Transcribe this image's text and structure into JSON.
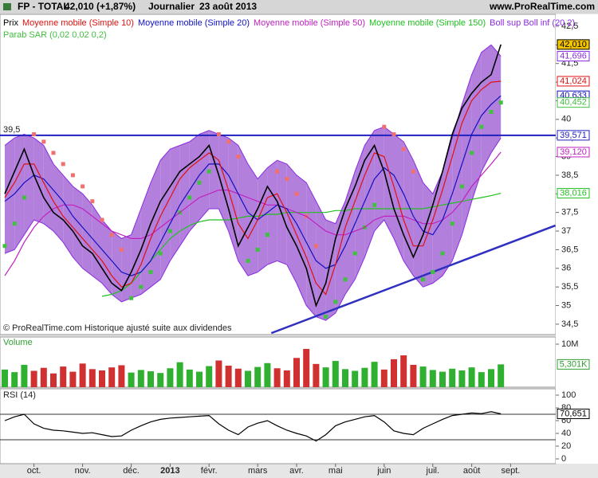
{
  "header": {
    "title": "FP - TOTAL",
    "quote": "42,010 (+1,87%)",
    "period": "Journalier",
    "date": "23 août 2013",
    "site": "www.ProRealTime.com"
  },
  "footnote": "© ProRealTime.com Historique ajusté suite aux dividendes",
  "chart_data": [
    {
      "type": "line",
      "categories": [
        null,
        null,
        null,
        "oct.",
        null,
        null,
        null,
        null,
        "nov.",
        null,
        null,
        null,
        null,
        "déc.",
        null,
        null,
        null,
        "2013",
        null,
        null,
        null,
        "févr.",
        null,
        null,
        null,
        null,
        "mars",
        null,
        null,
        null,
        "avr.",
        null,
        null,
        null,
        "mai",
        null,
        null,
        null,
        null,
        "juin",
        null,
        null,
        null,
        null,
        "juil.",
        null,
        null,
        null,
        "août",
        null,
        null,
        null,
        "sept."
      ],
      "ylim": [
        34.22,
        42.82
      ],
      "yticks": [
        {
          "value": 34.5,
          "label": "34,5"
        },
        35,
        {
          "value": 35.5,
          "label": "35,5"
        },
        36,
        {
          "value": 36.5,
          "label": "36,5"
        },
        37,
        {
          "value": 37.5,
          "label": "37,5"
        },
        38,
        {
          "value": 38.5,
          "label": "38,5"
        },
        39,
        {
          "value": 39.5,
          "label": "39,5"
        },
        40,
        {
          "value": 40.5,
          "label": "40,5"
        },
        41,
        {
          "value": 41.5,
          "label": "41,5"
        },
        42,
        {
          "value": 42.5,
          "label": "42,5"
        }
      ],
      "bollinger": {
        "name": "Boll sup Boll inf (20 2)",
        "color": "#8a2be2",
        "fill": "#a46ad6",
        "upper": [
          39.3,
          39.5,
          39.6,
          39.5,
          39.3,
          38.8,
          38.5,
          38.2,
          38.0,
          37.7,
          37.3,
          37.0,
          36.8,
          36.9,
          37.6,
          38.3,
          38.9,
          39.2,
          39.3,
          39.4,
          39.6,
          39.7,
          39.6,
          39.5,
          39.3,
          38.8,
          38.4,
          38.7,
          38.9,
          38.8,
          38.5,
          38.3,
          37.8,
          37.3,
          37.2,
          37.8,
          38.6,
          39.3,
          39.7,
          39.8,
          39.6,
          39.4,
          38.9,
          38.3,
          38.0,
          38.6,
          39.5,
          40.4,
          41.2,
          41.8,
          42.0,
          41.696,
          null
        ],
        "lower": [
          36.4,
          36.5,
          36.9,
          37.3,
          37.2,
          37.0,
          36.7,
          36.3,
          36.0,
          35.8,
          35.6,
          35.3,
          35.1,
          35.2,
          35.3,
          35.5,
          35.7,
          36.2,
          36.6,
          37.0,
          37.3,
          37.6,
          37.6,
          37.0,
          36.2,
          35.8,
          35.9,
          36.1,
          36.2,
          36.1,
          35.6,
          35.0,
          34.7,
          34.6,
          34.8,
          35.3,
          35.7,
          36.3,
          37.0,
          37.3,
          36.8,
          36.2,
          35.8,
          35.5,
          35.6,
          35.8,
          36.2,
          36.9,
          37.8,
          38.6,
          39.1,
          39.5,
          null
        ],
        "last_label": "41,696"
      },
      "series": [
        {
          "name": "Prix",
          "color": "#000000",
          "label_bg": "#f5c400",
          "last_label": "42,010",
          "values": [
            38.0,
            38.6,
            39.2,
            38.5,
            37.9,
            37.5,
            37.3,
            37.0,
            36.6,
            36.4,
            36.0,
            35.6,
            35.4,
            35.9,
            36.5,
            37.2,
            37.8,
            38.2,
            38.6,
            38.8,
            39.0,
            39.3,
            38.5,
            37.6,
            36.6,
            37.1,
            37.6,
            38.2,
            37.8,
            37.1,
            36.6,
            36.0,
            35.0,
            35.6,
            36.8,
            37.6,
            38.2,
            38.9,
            39.3,
            38.6,
            37.6,
            36.9,
            36.3,
            36.9,
            37.7,
            38.6,
            39.6,
            40.3,
            40.7,
            41.0,
            41.2,
            42.01,
            null
          ]
        },
        {
          "name": "Moyenne mobile (Simple 10)",
          "color": "#e01010",
          "last_label": "41,024",
          "values": [
            37.9,
            38.3,
            38.8,
            38.8,
            38.3,
            37.8,
            37.4,
            37.1,
            36.8,
            36.5,
            36.2,
            35.8,
            35.5,
            35.6,
            36.1,
            36.8,
            37.4,
            37.9,
            38.4,
            38.7,
            38.9,
            39.1,
            38.9,
            38.1,
            37.2,
            36.8,
            37.3,
            37.9,
            38.0,
            37.5,
            36.9,
            36.3,
            35.6,
            35.3,
            36.1,
            37.1,
            37.8,
            38.5,
            39.1,
            39.0,
            38.2,
            37.3,
            36.6,
            36.6,
            37.3,
            38.1,
            39.0,
            39.9,
            40.5,
            40.8,
            41.0,
            41.024,
            null
          ]
        },
        {
          "name": "Moyenne mobile (Simple 20)",
          "color": "#1010c0",
          "last_label": "40,633",
          "values": [
            37.8,
            38.0,
            38.3,
            38.5,
            38.4,
            38.1,
            37.8,
            37.4,
            37.1,
            36.8,
            36.5,
            36.2,
            35.9,
            35.8,
            35.9,
            36.2,
            36.7,
            37.2,
            37.7,
            38.1,
            38.5,
            38.8,
            38.8,
            38.5,
            38.0,
            37.5,
            37.3,
            37.5,
            37.7,
            37.6,
            37.2,
            36.7,
            36.2,
            36.0,
            36.1,
            36.6,
            37.2,
            37.8,
            38.4,
            38.7,
            38.5,
            38.0,
            37.4,
            37.0,
            36.9,
            37.3,
            38.0,
            38.8,
            39.6,
            40.1,
            40.4,
            40.633,
            null
          ]
        },
        {
          "name": "Moyenne mobile (Simple 50)",
          "color": "#c020c0",
          "last_label": "39,120",
          "values": [
            35.8,
            36.2,
            36.7,
            37.1,
            37.4,
            37.6,
            37.7,
            37.7,
            37.6,
            37.4,
            37.2,
            37.0,
            36.9,
            36.8,
            36.8,
            36.9,
            37.1,
            37.3,
            37.5,
            37.7,
            37.9,
            38.0,
            38.1,
            38.1,
            38.0,
            37.9,
            37.8,
            37.7,
            37.7,
            37.6,
            37.5,
            37.4,
            37.2,
            37.0,
            36.9,
            36.9,
            37.0,
            37.1,
            37.3,
            37.4,
            37.4,
            37.4,
            37.3,
            37.2,
            37.2,
            37.3,
            37.5,
            37.8,
            38.2,
            38.5,
            38.8,
            39.12,
            null
          ]
        },
        {
          "name": "Moyenne mobile (Simple 150)",
          "color": "#20c020",
          "last_label": "38,016",
          "values": [
            null,
            null,
            null,
            null,
            null,
            null,
            null,
            null,
            null,
            null,
            35.25,
            35.3,
            35.4,
            35.6,
            35.9,
            36.2,
            36.5,
            36.8,
            37.0,
            37.15,
            37.25,
            37.3,
            37.3,
            37.3,
            37.35,
            37.4,
            37.4,
            37.45,
            37.45,
            37.5,
            37.5,
            37.5,
            37.5,
            37.5,
            37.55,
            37.55,
            37.6,
            37.6,
            37.6,
            37.6,
            37.6,
            37.6,
            37.6,
            37.6,
            37.65,
            37.7,
            37.75,
            37.8,
            37.85,
            37.9,
            37.95,
            38.016,
            null
          ]
        }
      ],
      "sar": {
        "name": "Parab SAR (0,02 0,02 0,2)",
        "color": "#40c040",
        "color_above": "#f07070",
        "last_label": "40,452",
        "values": [
          36.6,
          37.2,
          37.9,
          39.6,
          39.4,
          39.1,
          38.8,
          38.5,
          38.2,
          37.8,
          37.3,
          36.9,
          36.5,
          35.2,
          35.5,
          35.9,
          36.4,
          37.0,
          37.5,
          37.9,
          38.3,
          38.6,
          39.6,
          39.4,
          39.0,
          36.2,
          36.5,
          36.9,
          38.6,
          38.4,
          38.0,
          37.4,
          36.6,
          34.7,
          35.1,
          35.7,
          36.4,
          37.1,
          37.7,
          39.8,
          39.6,
          39.2,
          38.6,
          35.7,
          35.9,
          36.4,
          37.2,
          38.2,
          39.1,
          39.8,
          40.2,
          40.452,
          null
        ]
      },
      "hline": {
        "value": 39.571,
        "label": "39,571",
        "left_label": "39,5",
        "color": "#2020c0"
      },
      "trendline": {
        "x": [
          27.4,
          56.6
        ],
        "y": [
          34.26,
          37.15
        ],
        "color": "#3030c0"
      }
    },
    {
      "type": "bar",
      "title": "Volume",
      "ylim": [
        0,
        11.67
      ],
      "yticks": [
        {
          "value": 10,
          "label": "10M"
        }
      ],
      "colors": {
        "up": "#30b030",
        "down": "#d03030"
      },
      "last_label": "5,301K",
      "values": [
        4.1,
        3.5,
        5.2,
        3.8,
        4.5,
        3.2,
        4.8,
        3.6,
        5.5,
        4.2,
        3.9,
        4.6,
        5.1,
        3.4,
        4.0,
        3.7,
        3.3,
        4.4,
        5.8,
        4.1,
        3.6,
        4.9,
        6.2,
        5.0,
        4.3,
        3.8,
        4.7,
        5.6,
        4.4,
        3.9,
        6.8,
        8.9,
        5.4,
        4.6,
        6.1,
        4.2,
        3.8,
        4.5,
        5.9,
        4.1,
        6.5,
        7.4,
        5.2,
        4.8,
        4.0,
        3.6,
        4.3,
        3.9,
        4.6,
        3.5,
        4.2,
        5.301,
        null
      ]
    },
    {
      "type": "line",
      "title": "RSI (14)",
      "color": "#000000",
      "ylim": [
        -7.5,
        110
      ],
      "yticks": [
        0,
        20,
        40,
        60,
        80,
        100
      ],
      "levels": [
        70,
        30
      ],
      "last_label": "70,651",
      "values": [
        60,
        66,
        70,
        55,
        48,
        45,
        44,
        42,
        40,
        41,
        38,
        35,
        36,
        45,
        52,
        58,
        62,
        64,
        65,
        66,
        67,
        68,
        55,
        45,
        38,
        50,
        56,
        60,
        52,
        45,
        40,
        36,
        28,
        38,
        52,
        58,
        62,
        66,
        68,
        58,
        44,
        40,
        38,
        48,
        55,
        62,
        68,
        70,
        72,
        71,
        74,
        70.651,
        null
      ]
    }
  ]
}
